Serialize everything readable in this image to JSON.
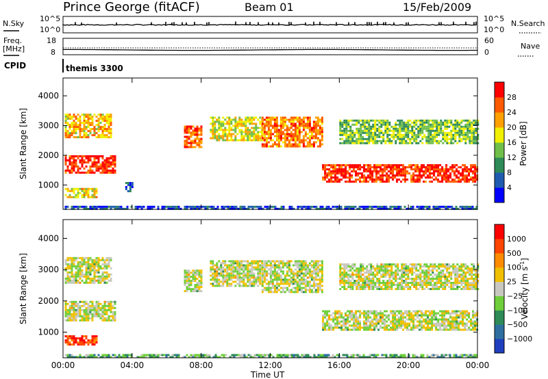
{
  "header": {
    "station": "Prince George (fitACF)",
    "beam": "Beam 01",
    "date": "15/Feb/2009"
  },
  "labels": {
    "nsky": "N.Sky",
    "nsky_hi": "10^5",
    "nsky_lo": "10^0",
    "nsearch": "N.Search",
    "freq1": "Freq.",
    "freq2": "[MHz]",
    "freq_hi": "18",
    "freq_lo": "8",
    "nave": "Nave",
    "nave_hi": "60",
    "nave_lo": "0",
    "cpid": "CPID",
    "cpid_value": "themis 3300",
    "ylabel": "Slant Range [km]",
    "xlabel": "Time UT"
  },
  "chart_data": [
    {
      "type": "line",
      "name": "sky-search-counts",
      "ylim_label": [
        "10^0",
        "10^5"
      ],
      "series": [
        {
          "name": "N.Sky"
        },
        {
          "name": "N.Search"
        }
      ]
    },
    {
      "type": "line",
      "name": "freq-nave",
      "ylim": [
        8,
        18
      ],
      "series": [
        {
          "name": "Freq."
        },
        {
          "name": "Nave"
        }
      ]
    },
    {
      "type": "heatmap",
      "name": "power",
      "xlabel": "Time UT",
      "ylabel": "Slant Range [km]",
      "xticks": [
        "00:00",
        "04:00",
        "08:00",
        "12:00",
        "16:00",
        "20:00",
        "00:00"
      ],
      "yticks": [
        1000,
        2000,
        3000,
        4000
      ],
      "xlim_hours": [
        0,
        24
      ],
      "ylim_km": [
        180,
        4600
      ],
      "colorbar": {
        "label": "Power [dB]",
        "ticks": [
          "4",
          "8",
          "12",
          "16",
          "20",
          "24",
          "28"
        ],
        "colors": [
          "#0000ff",
          "#1f5cb0",
          "#2e8b57",
          "#6fbf4a",
          "#f0f000",
          "#ffa000",
          "#ff5a00",
          "#ff0000"
        ]
      },
      "regions": [
        {
          "t0": 0.1,
          "t1": 3.0,
          "r0": 1400,
          "r1": 2000,
          "level": 0.9
        },
        {
          "t0": 0.1,
          "t1": 2.8,
          "r0": 2600,
          "r1": 3400,
          "level": 0.65
        },
        {
          "t0": 0.1,
          "t1": 2.0,
          "r0": 600,
          "r1": 900,
          "level": 0.6
        },
        {
          "t0": 3.6,
          "t1": 4.0,
          "r0": 800,
          "r1": 1100,
          "level": 0.2
        },
        {
          "t0": 7.0,
          "t1": 8.0,
          "r0": 2300,
          "r1": 3000,
          "level": 0.8
        },
        {
          "t0": 8.5,
          "t1": 11.5,
          "r0": 2500,
          "r1": 3300,
          "level": 0.55
        },
        {
          "t0": 11.5,
          "t1": 15.0,
          "r0": 2300,
          "r1": 3300,
          "level": 0.75
        },
        {
          "t0": 15.0,
          "t1": 24.0,
          "r0": 1100,
          "r1": 1700,
          "level": 0.9
        },
        {
          "t0": 16.0,
          "t1": 24.0,
          "r0": 2400,
          "r1": 3200,
          "level": 0.45
        },
        {
          "t0": 0.1,
          "t1": 24.0,
          "r0": 180,
          "r1": 300,
          "level": 0.15
        }
      ]
    },
    {
      "type": "heatmap",
      "name": "velocity",
      "xlabel": "Time UT",
      "ylabel": "Slant Range [km]",
      "xticks": [
        "00:00",
        "04:00",
        "08:00",
        "12:00",
        "16:00",
        "20:00",
        "00:00"
      ],
      "yticks": [
        1000,
        2000,
        3000,
        4000
      ],
      "xlim_hours": [
        0,
        24
      ],
      "ylim_km": [
        180,
        4600
      ],
      "colorbar": {
        "label": "Velocity [m s",
        "label_sup": "-1",
        "label_end": "]",
        "ticks": [
          "1000",
          "500",
          "100",
          "25",
          "−25",
          "−100",
          "−500",
          "−1000"
        ],
        "colors": [
          "#1f3fbf",
          "#2e6fa0",
          "#2e8b57",
          "#6fcf3a",
          "#c8c8c0",
          "#f0c000",
          "#ff8c00",
          "#ff4500",
          "#ff0000"
        ]
      },
      "regions": [
        {
          "t0": 0.1,
          "t1": 3.0,
          "r0": 1400,
          "r1": 2000,
          "level": 0.5
        },
        {
          "t0": 0.1,
          "t1": 2.8,
          "r0": 2600,
          "r1": 3400,
          "level": 0.5
        },
        {
          "t0": 0.1,
          "t1": 2.0,
          "r0": 600,
          "r1": 900,
          "level": 0.85
        },
        {
          "t0": 7.0,
          "t1": 8.0,
          "r0": 2300,
          "r1": 3000,
          "level": 0.5
        },
        {
          "t0": 8.5,
          "t1": 11.5,
          "r0": 2500,
          "r1": 3300,
          "level": 0.5
        },
        {
          "t0": 11.5,
          "t1": 15.0,
          "r0": 2300,
          "r1": 3300,
          "level": 0.5
        },
        {
          "t0": 15.0,
          "t1": 24.0,
          "r0": 1100,
          "r1": 1700,
          "level": 0.5
        },
        {
          "t0": 16.0,
          "t1": 24.0,
          "r0": 2400,
          "r1": 3200,
          "level": 0.5
        },
        {
          "t0": 0.1,
          "t1": 24.0,
          "r0": 180,
          "r1": 300,
          "level": 0.35
        }
      ]
    }
  ]
}
